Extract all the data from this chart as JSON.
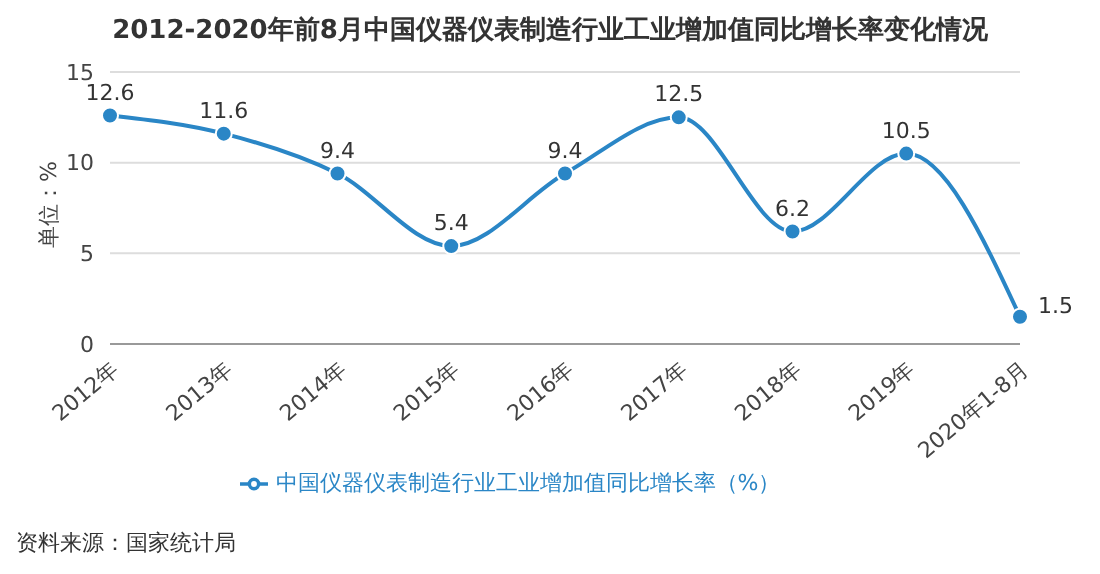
{
  "chart_data": {
    "type": "line",
    "title": "2012-2020年前8月中国仪器仪表制造行业工业增加值同比增长率变化情况",
    "ylabel": "单位：%",
    "categories": [
      "2012年",
      "2013年",
      "2014年",
      "2015年",
      "2016年",
      "2017年",
      "2018年",
      "2019年",
      "2020年1-8月"
    ],
    "series": [
      {
        "name": "中国仪器仪表制造行业工业增加值同比增长率（%）",
        "color": "#2a86c6",
        "values": [
          12.6,
          11.6,
          9.4,
          5.4,
          9.4,
          12.5,
          6.2,
          10.5,
          1.5
        ]
      }
    ],
    "ylim": [
      0,
      15
    ],
    "yticks": [
      0,
      5,
      10,
      15
    ],
    "grid": "y",
    "legend": "bottom",
    "marker": "circle",
    "data_labels": true,
    "annotations": [
      "资料来源：国家统计局"
    ]
  }
}
